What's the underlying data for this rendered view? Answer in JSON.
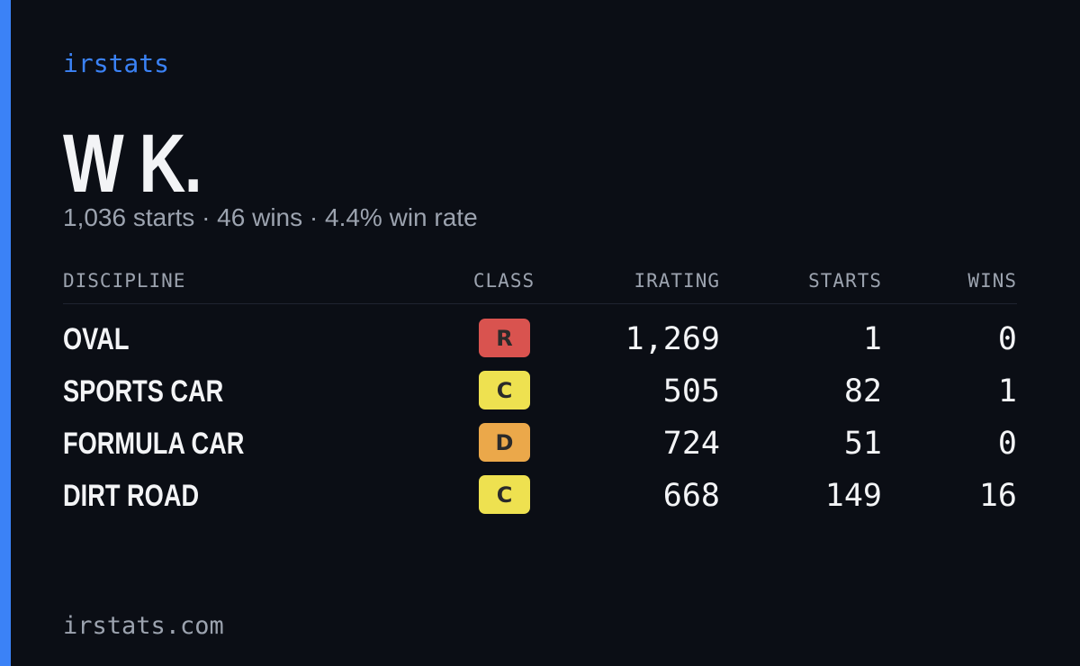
{
  "header": {
    "brand": "irstats",
    "name": "W K.",
    "summary": "1,036 starts · 46 wins · 4.4% win rate"
  },
  "table": {
    "columns": [
      "DISCIPLINE",
      "CLASS",
      "IRATING",
      "STARTS",
      "WINS"
    ],
    "rows": [
      {
        "discipline": "OVAL",
        "class": "R",
        "class_color": "#d9534f",
        "irating": "1,269",
        "starts": "1",
        "wins": "0"
      },
      {
        "discipline": "SPORTS CAR",
        "class": "C",
        "class_color": "#eee150",
        "irating": "505",
        "starts": "82",
        "wins": "1"
      },
      {
        "discipline": "FORMULA CAR",
        "class": "D",
        "class_color": "#eba84a",
        "irating": "724",
        "starts": "51",
        "wins": "0"
      },
      {
        "discipline": "DIRT ROAD",
        "class": "C",
        "class_color": "#eee150",
        "irating": "668",
        "starts": "149",
        "wins": "16"
      }
    ]
  },
  "footer": {
    "url": "irstats.com"
  }
}
